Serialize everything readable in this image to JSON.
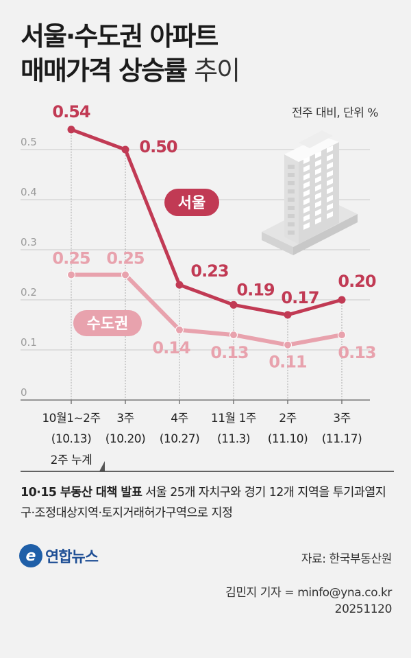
{
  "title": {
    "line1": "서울·수도권 아파트",
    "line2_bold": "매매가격 상승률",
    "line2_light": "추이"
  },
  "unit_label": "전주 대비, 단위 %",
  "chart_data": {
    "type": "line",
    "categories": [
      {
        "week": "10월1~2주",
        "date": "(10.13)"
      },
      {
        "week": "3주",
        "date": "(10.20)"
      },
      {
        "week": "4주",
        "date": "(10.27)"
      },
      {
        "week": "11월 1주",
        "date": "(11.3)"
      },
      {
        "week": "2주",
        "date": "(11.10)"
      },
      {
        "week": "3주",
        "date": "(11.17)"
      }
    ],
    "first_category_note": "2주 누계",
    "y_ticks": [
      "0",
      "0.1",
      "0.2",
      "0.3",
      "0.4",
      "0.5"
    ],
    "ylim": [
      0,
      0.5
    ],
    "series": [
      {
        "name": "서울",
        "values": [
          0.54,
          0.5,
          0.23,
          0.19,
          0.17,
          0.2
        ],
        "labels": [
          "0.54",
          "0.50",
          "0.23",
          "0.19",
          "0.17",
          "0.20"
        ],
        "color": "#c13a54"
      },
      {
        "name": "수도권",
        "values": [
          0.25,
          0.25,
          0.14,
          0.13,
          0.11,
          0.13
        ],
        "labels": [
          "0.25",
          "0.25",
          "0.14",
          "0.13",
          "0.11",
          "0.13"
        ],
        "color": "#e8a2ad"
      }
    ],
    "grid": true
  },
  "note": {
    "bold": "10·15 부동산 대책 발표",
    "text": " 서울 25개 자치구와 경기 12개 지역을 투기과열지구·조정대상지역·토지거래허가구역으로 지정"
  },
  "logo_text": "연합뉴스",
  "source": "자료: 한국부동산원",
  "credit": {
    "reporter": "김민지 기자 = minfo@yna.co.kr",
    "date": "20251120"
  },
  "colors": {
    "seoul": "#c13a54",
    "metro": "#e8a2ad",
    "background": "#f2f2f2"
  }
}
